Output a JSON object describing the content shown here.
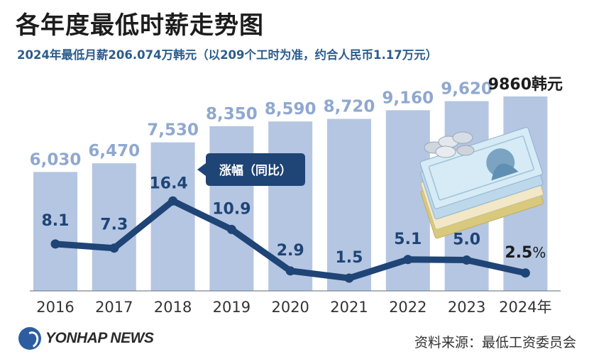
{
  "title": "各年度最低时薪走势图",
  "subtitle": "2024年最低月薪206.074万韩元（以209个工时为准，约合人民币1.17万元）",
  "source": "资料来源：最低工资委员会",
  "logo": {
    "text": "YONHAP NEWS",
    "icon": "yonhap-logo-icon"
  },
  "colors": {
    "bar": "#b4c6e2",
    "bar_label": "#8fa8cf",
    "line": "#1f4476",
    "callout": "#1f4476",
    "last_label": "#1c1c1c"
  },
  "chart_data": [
    {
      "type": "bar",
      "categories": [
        "2016",
        "2017",
        "2018",
        "2019",
        "2020",
        "2021",
        "2022",
        "2023",
        "2024年"
      ],
      "values": [
        6030,
        6470,
        7530,
        8350,
        8590,
        8720,
        9160,
        9620,
        9860
      ],
      "labels": [
        "6,030",
        "6,470",
        "7,530",
        "8,350",
        "8,590",
        "8,720",
        "9,160",
        "9,620",
        "9860韩元"
      ],
      "ylim": [
        0,
        10000
      ]
    },
    {
      "type": "line",
      "name": "涨幅（同比）",
      "categories": [
        "2016",
        "2017",
        "2018",
        "2019",
        "2020",
        "2021",
        "2022",
        "2023",
        "2024年"
      ],
      "values": [
        8.1,
        7.3,
        16.4,
        10.9,
        2.9,
        1.5,
        5.1,
        5.0,
        2.5
      ],
      "labels": [
        "8.1",
        "7.3",
        "16.4",
        "10.9",
        "2.9",
        "1.5",
        "5.1",
        "5.0",
        "2.5"
      ],
      "last_unit": "%",
      "ylim": [
        0,
        20
      ]
    }
  ]
}
